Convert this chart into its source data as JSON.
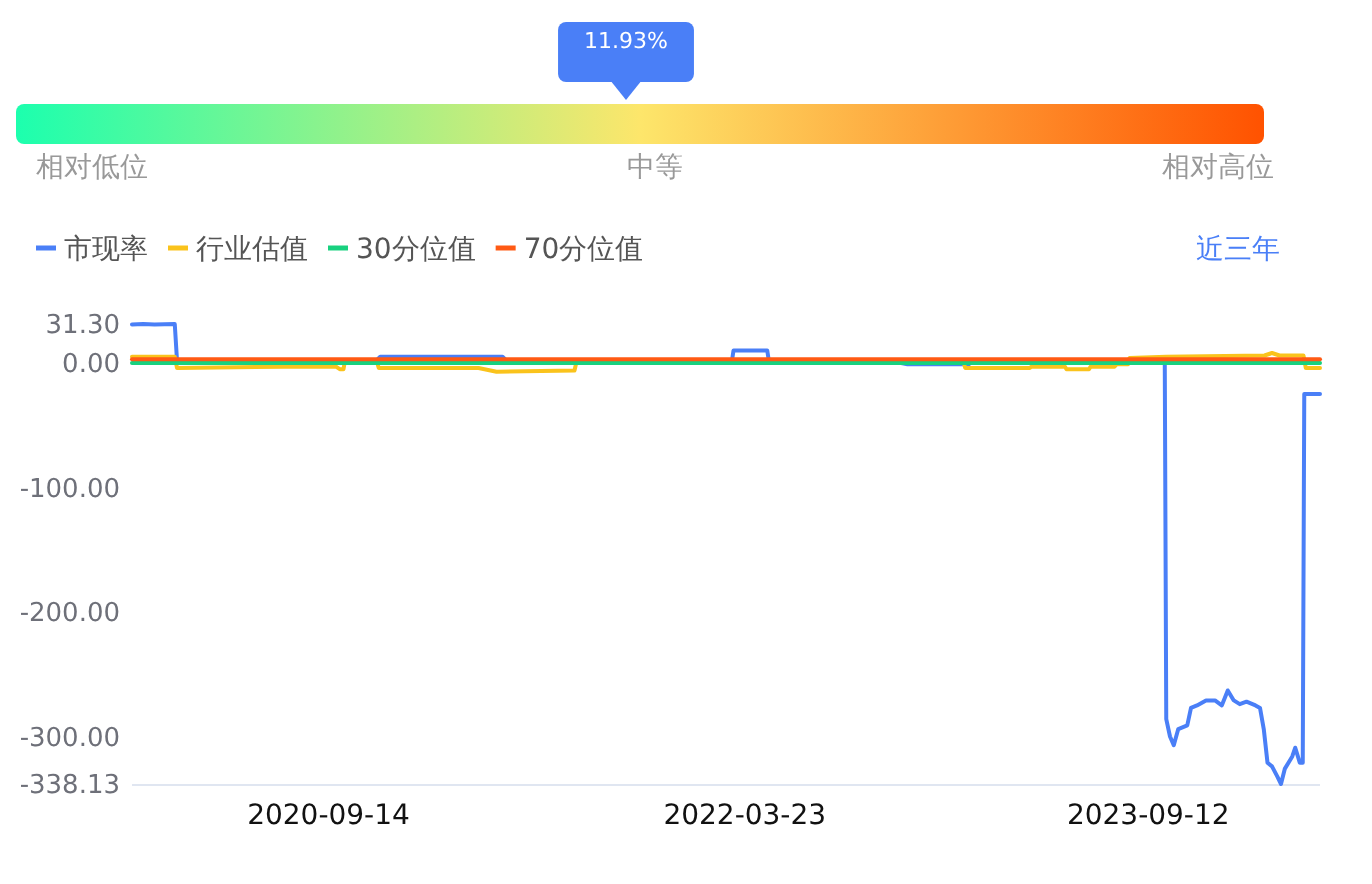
{
  "chart_data": [
    {
      "type": "other",
      "colors": [
        "#1cffae",
        "#fde66b",
        "#ff5200"
      ],
      "categories": [
        "相对低位",
        "中等",
        "相对高位"
      ],
      "annotations": [
        "11.93%"
      ]
    },
    {
      "type": "line",
      "legend": "top left",
      "annotations": [
        "近三年"
      ],
      "xlim": [
        "2019-12-27",
        "2024-04-28"
      ],
      "xticks": [
        "2020-09-14",
        "2022-03-23",
        "2023-09-12"
      ],
      "ylim": [
        -338.13,
        31.3
      ],
      "yticks": [
        {
          "value": 31.3,
          "label": "31.30"
        },
        {
          "value": 0,
          "label": "0.00"
        },
        {
          "value": -100,
          "label": "-100.00"
        },
        {
          "value": -200,
          "label": "-200.00"
        },
        {
          "value": -300,
          "label": "-300.00"
        },
        {
          "value": -338.13,
          "label": "-338.13"
        }
      ],
      "series": [
        {
          "name": "市现率",
          "color": "#4a7ff7",
          "x": [
            "2019-12-27",
            "2020-01-11",
            "2020-01-26",
            "2020-02-22",
            "2020-02-25",
            "2020-11-17",
            "2020-11-22",
            "2021-05-04",
            "2021-05-09",
            "2022-03-06",
            "2022-03-08",
            "2022-04-22",
            "2022-04-24",
            "2022-10-09",
            "2022-10-26",
            "2023-01-16",
            "2023-01-20",
            "2023-10-04",
            "2023-10-06",
            "2023-10-11",
            "2023-10-16",
            "2023-10-22",
            "2023-11-03",
            "2023-11-08",
            "2023-11-16",
            "2023-11-28",
            "2023-12-10",
            "2023-12-19",
            "2023-12-27",
            "2024-01-04",
            "2024-01-12",
            "2024-01-21",
            "2024-02-02",
            "2024-02-08",
            "2024-02-13",
            "2024-02-18",
            "2024-02-24",
            "2024-03-02",
            "2024-03-07",
            "2024-03-12",
            "2024-03-22",
            "2024-03-26",
            "2024-04-01",
            "2024-04-05",
            "2024-04-07",
            "2024-04-28"
          ],
          "values": [
            31,
            31.3,
            31,
            31.3,
            2,
            2,
            5,
            5,
            2,
            2,
            10,
            10,
            2,
            1,
            -1,
            -1,
            2,
            2,
            -286,
            -300,
            -307,
            -294,
            -291,
            -277,
            -275,
            -271,
            -271,
            -275,
            -263,
            -271,
            -274,
            -272,
            -275,
            -277,
            -294,
            -321,
            -324,
            -332,
            -338.13,
            -326,
            -316,
            -309,
            -321,
            -321,
            -25,
            -25
          ]
        },
        {
          "name": "行业估值",
          "color": "#fac31c",
          "x": [
            "2019-12-27",
            "2020-02-22",
            "2020-02-25",
            "2020-07-17",
            "2020-09-24",
            "2020-09-29",
            "2020-10-04",
            "2020-10-06",
            "2020-11-17",
            "2020-11-20",
            "2021-03-20",
            "2021-04-02",
            "2021-04-26",
            "2021-08-08",
            "2021-08-11",
            "2023-01-08",
            "2023-01-11",
            "2023-04-07",
            "2023-04-09",
            "2023-05-24",
            "2023-05-26",
            "2023-06-25",
            "2023-06-27",
            "2023-07-29",
            "2023-08-01",
            "2023-08-16",
            "2023-08-18",
            "2023-10-06",
            "2024-02-14",
            "2024-02-24",
            "2024-03-05",
            "2024-04-06",
            "2024-04-09",
            "2024-04-28"
          ],
          "values": [
            5,
            5,
            -4,
            -3,
            -3,
            -5,
            -5,
            2,
            2,
            -4,
            -4,
            -4,
            -7,
            -6,
            2,
            2,
            -4,
            -4,
            -3,
            -3,
            -5,
            -5,
            -3,
            -3,
            -1,
            -1,
            4,
            5,
            6,
            8,
            6,
            6,
            -4,
            -4
          ]
        },
        {
          "name": "30分位值",
          "color": "#18d17f",
          "x": [
            "2019-12-27",
            "2024-04-28"
          ],
          "values": [
            0,
            0
          ]
        },
        {
          "name": "70分位值",
          "color": "#ff5a14",
          "x": [
            "2019-12-27",
            "2024-04-28"
          ],
          "values": [
            3,
            3
          ]
        }
      ]
    }
  ]
}
